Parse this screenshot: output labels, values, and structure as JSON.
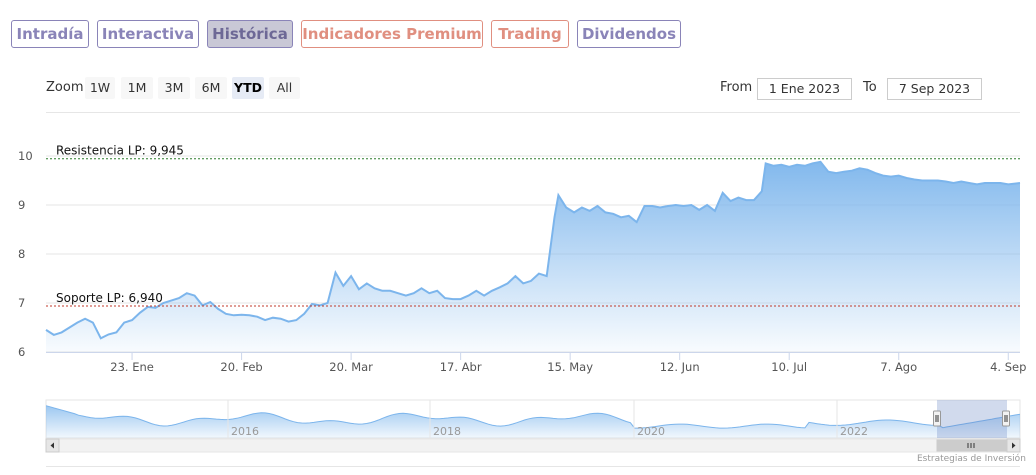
{
  "tabs": [
    {
      "label": "Intradía",
      "style": "violet",
      "active": false
    },
    {
      "label": "Interactiva",
      "style": "violet",
      "active": false
    },
    {
      "label": "Histórica",
      "style": "violet",
      "active": true
    },
    {
      "label": "Indicadores Premium",
      "style": "salmon",
      "active": false
    },
    {
      "label": "Trading",
      "style": "salmon",
      "active": false
    },
    {
      "label": "Dividendos",
      "style": "violet",
      "active": false
    }
  ],
  "range_selector": {
    "zoom_label": "Zoom",
    "buttons": [
      "1W",
      "1M",
      "3M",
      "6M",
      "YTD",
      "All"
    ],
    "selected": "YTD",
    "from_label": "From",
    "from_value": "1 Ene 2023",
    "to_label": "To",
    "to_value": "7 Sep 2023"
  },
  "credits": "Estrategias de Inversión",
  "colors": {
    "line": "#7cb5ec",
    "area_top": "#7cb5ec",
    "resistance": "#2f7d2f",
    "support": "#c0392b",
    "tab_violet": "#8a84b8",
    "tab_salmon": "#e08f80"
  },
  "chart_data": {
    "type": "area",
    "ylim": [
      6,
      10
    ],
    "y_ticks": [
      6,
      7,
      8,
      9,
      10
    ],
    "x_range": [
      "2023-01-01",
      "2023-09-07"
    ],
    "x_ticks": [
      {
        "date": "2023-01-23",
        "label": "23. Ene"
      },
      {
        "date": "2023-02-20",
        "label": "20. Feb"
      },
      {
        "date": "2023-03-20",
        "label": "20. Mar"
      },
      {
        "date": "2023-04-17",
        "label": "17. Abr"
      },
      {
        "date": "2023-05-15",
        "label": "15. May"
      },
      {
        "date": "2023-06-12",
        "label": "12. Jun"
      },
      {
        "date": "2023-07-10",
        "label": "10. Jul"
      },
      {
        "date": "2023-08-07",
        "label": "7. Ago"
      },
      {
        "date": "2023-09-04",
        "label": "4. Sep"
      }
    ],
    "series": [
      {
        "points": [
          [
            "2023-01-01",
            6.45
          ],
          [
            "2023-01-03",
            6.35
          ],
          [
            "2023-01-05",
            6.4
          ],
          [
            "2023-01-07",
            6.5
          ],
          [
            "2023-01-09",
            6.6
          ],
          [
            "2023-01-11",
            6.68
          ],
          [
            "2023-01-13",
            6.6
          ],
          [
            "2023-01-15",
            6.28
          ],
          [
            "2023-01-17",
            6.36
          ],
          [
            "2023-01-19",
            6.4
          ],
          [
            "2023-01-21",
            6.6
          ],
          [
            "2023-01-23",
            6.65
          ],
          [
            "2023-01-25",
            6.8
          ],
          [
            "2023-01-27",
            6.92
          ],
          [
            "2023-01-29",
            6.9
          ],
          [
            "2023-01-31",
            7.0
          ],
          [
            "2023-02-02",
            7.05
          ],
          [
            "2023-02-04",
            7.1
          ],
          [
            "2023-02-06",
            7.2
          ],
          [
            "2023-02-08",
            7.15
          ],
          [
            "2023-02-10",
            6.95
          ],
          [
            "2023-02-12",
            7.02
          ],
          [
            "2023-02-14",
            6.88
          ],
          [
            "2023-02-16",
            6.78
          ],
          [
            "2023-02-18",
            6.75
          ],
          [
            "2023-02-20",
            6.76
          ],
          [
            "2023-02-22",
            6.75
          ],
          [
            "2023-02-24",
            6.72
          ],
          [
            "2023-02-26",
            6.65
          ],
          [
            "2023-02-28",
            6.7
          ],
          [
            "2023-03-02",
            6.68
          ],
          [
            "2023-03-04",
            6.62
          ],
          [
            "2023-03-06",
            6.65
          ],
          [
            "2023-03-08",
            6.78
          ],
          [
            "2023-03-10",
            6.98
          ],
          [
            "2023-03-12",
            6.95
          ],
          [
            "2023-03-14",
            7.0
          ],
          [
            "2023-03-16",
            7.62
          ],
          [
            "2023-03-18",
            7.35
          ],
          [
            "2023-03-20",
            7.55
          ],
          [
            "2023-03-22",
            7.28
          ],
          [
            "2023-03-24",
            7.4
          ],
          [
            "2023-03-26",
            7.3
          ],
          [
            "2023-03-28",
            7.25
          ],
          [
            "2023-03-30",
            7.25
          ],
          [
            "2023-04-01",
            7.2
          ],
          [
            "2023-04-03",
            7.15
          ],
          [
            "2023-04-05",
            7.2
          ],
          [
            "2023-04-07",
            7.3
          ],
          [
            "2023-04-09",
            7.2
          ],
          [
            "2023-04-11",
            7.25
          ],
          [
            "2023-04-13",
            7.1
          ],
          [
            "2023-04-15",
            7.08
          ],
          [
            "2023-04-17",
            7.08
          ],
          [
            "2023-04-19",
            7.15
          ],
          [
            "2023-04-21",
            7.25
          ],
          [
            "2023-04-23",
            7.15
          ],
          [
            "2023-04-25",
            7.25
          ],
          [
            "2023-04-27",
            7.32
          ],
          [
            "2023-04-29",
            7.4
          ],
          [
            "2023-05-01",
            7.55
          ],
          [
            "2023-05-03",
            7.4
          ],
          [
            "2023-05-05",
            7.45
          ],
          [
            "2023-05-07",
            7.6
          ],
          [
            "2023-05-09",
            7.55
          ],
          [
            "2023-05-11",
            8.75
          ],
          [
            "2023-05-12",
            9.2
          ],
          [
            "2023-05-14",
            8.95
          ],
          [
            "2023-05-16",
            8.85
          ],
          [
            "2023-05-18",
            8.95
          ],
          [
            "2023-05-20",
            8.88
          ],
          [
            "2023-05-22",
            8.98
          ],
          [
            "2023-05-24",
            8.85
          ],
          [
            "2023-05-26",
            8.82
          ],
          [
            "2023-05-28",
            8.75
          ],
          [
            "2023-05-30",
            8.78
          ],
          [
            "2023-06-01",
            8.65
          ],
          [
            "2023-06-03",
            8.98
          ],
          [
            "2023-06-05",
            8.98
          ],
          [
            "2023-06-07",
            8.95
          ],
          [
            "2023-06-09",
            8.98
          ],
          [
            "2023-06-11",
            9.0
          ],
          [
            "2023-06-13",
            8.98
          ],
          [
            "2023-06-15",
            9.0
          ],
          [
            "2023-06-17",
            8.9
          ],
          [
            "2023-06-19",
            9.0
          ],
          [
            "2023-06-21",
            8.88
          ],
          [
            "2023-06-23",
            9.25
          ],
          [
            "2023-06-25",
            9.08
          ],
          [
            "2023-06-27",
            9.15
          ],
          [
            "2023-06-29",
            9.1
          ],
          [
            "2023-07-01",
            9.1
          ],
          [
            "2023-07-03",
            9.28
          ],
          [
            "2023-07-04",
            9.85
          ],
          [
            "2023-07-06",
            9.8
          ],
          [
            "2023-07-08",
            9.82
          ],
          [
            "2023-07-10",
            9.78
          ],
          [
            "2023-07-12",
            9.82
          ],
          [
            "2023-07-14",
            9.8
          ],
          [
            "2023-07-16",
            9.85
          ],
          [
            "2023-07-18",
            9.88
          ],
          [
            "2023-07-20",
            9.68
          ],
          [
            "2023-07-22",
            9.65
          ],
          [
            "2023-07-24",
            9.68
          ],
          [
            "2023-07-26",
            9.7
          ],
          [
            "2023-07-28",
            9.75
          ],
          [
            "2023-07-30",
            9.72
          ],
          [
            "2023-08-01",
            9.65
          ],
          [
            "2023-08-03",
            9.6
          ],
          [
            "2023-08-05",
            9.58
          ],
          [
            "2023-08-07",
            9.6
          ],
          [
            "2023-08-09",
            9.55
          ],
          [
            "2023-08-11",
            9.52
          ],
          [
            "2023-08-13",
            9.5
          ],
          [
            "2023-08-15",
            9.5
          ],
          [
            "2023-08-17",
            9.5
          ],
          [
            "2023-08-19",
            9.48
          ],
          [
            "2023-08-21",
            9.45
          ],
          [
            "2023-08-23",
            9.48
          ],
          [
            "2023-08-25",
            9.45
          ],
          [
            "2023-08-27",
            9.42
          ],
          [
            "2023-08-29",
            9.45
          ],
          [
            "2023-08-31",
            9.45
          ],
          [
            "2023-09-02",
            9.45
          ],
          [
            "2023-09-04",
            9.42
          ],
          [
            "2023-09-07",
            9.45
          ]
        ]
      }
    ],
    "plot_lines": [
      {
        "label": "Resistencia LP: 9,945",
        "value": 9.945,
        "color": "resistance",
        "dash": "dotted"
      },
      {
        "label": "Soporte LP: 6,940",
        "value": 6.94,
        "color": "support",
        "dash": "dotted"
      }
    ],
    "navigator": {
      "year_labels": [
        "2016",
        "2018",
        "2020",
        "2022"
      ]
    }
  }
}
